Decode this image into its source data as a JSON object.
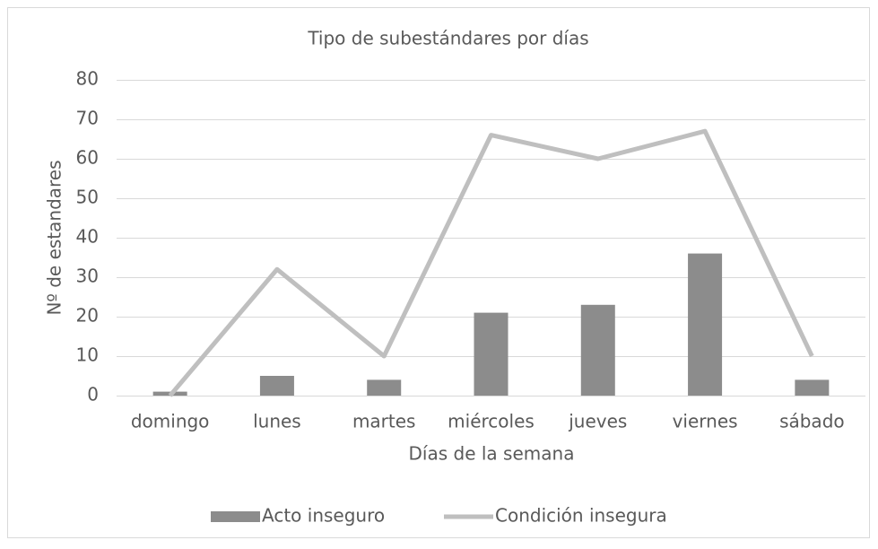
{
  "chart_data": {
    "type": "bar",
    "title": "Tipo de subestándares por días",
    "x_label": "Días de la semana",
    "y_label": "Nº de estandares",
    "categories": [
      "domingo",
      "lunes",
      "martes",
      "miércoles",
      "jueves",
      "viernes",
      "sábado"
    ],
    "series": [
      {
        "name": "Acto inseguro",
        "type": "bar",
        "color": "#8c8c8c",
        "values": [
          1,
          5,
          4,
          21,
          23,
          36,
          4
        ]
      },
      {
        "name": "Condición insegura",
        "type": "line",
        "color": "#bfbfbf",
        "values": [
          0,
          32,
          10,
          66,
          60,
          67,
          10
        ]
      }
    ],
    "ylim": [
      0,
      80
    ],
    "yticks": [
      0,
      10,
      20,
      30,
      40,
      50,
      60,
      70,
      80
    ],
    "grid": true,
    "legend": "bottom"
  }
}
